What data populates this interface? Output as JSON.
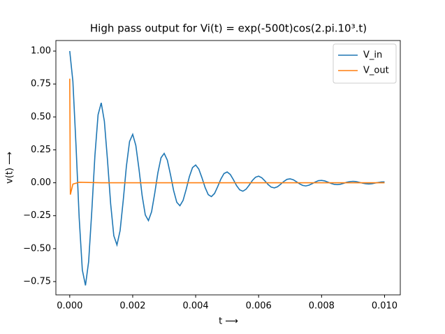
{
  "chart_data": {
    "type": "line",
    "title": "High pass output for Vi(t) = exp(-500t)cos(2.pi.10³.t)",
    "x_label": "t ⟶",
    "y_label": "v(t) ⟶",
    "xlim": [
      -0.00044,
      0.0105
    ],
    "ylim": [
      -0.851,
      1.08
    ],
    "xticks": [
      {
        "value": 0,
        "label": "0.000"
      },
      {
        "value": 0.002,
        "label": "0.002"
      },
      {
        "value": 0.004,
        "label": "0.004"
      },
      {
        "value": 0.006,
        "label": "0.006"
      },
      {
        "value": 0.008,
        "label": "0.008"
      },
      {
        "value": 0.01,
        "label": "0.010"
      }
    ],
    "yticks": [
      {
        "value": -0.75,
        "label": "−0.75"
      },
      {
        "value": -0.5,
        "label": "−0.50"
      },
      {
        "value": -0.25,
        "label": "−0.25"
      },
      {
        "value": 0,
        "label": "0.00"
      },
      {
        "value": 0.25,
        "label": "0.25"
      },
      {
        "value": 0.5,
        "label": "0.50"
      },
      {
        "value": 0.75,
        "label": "0.75"
      },
      {
        "value": 1,
        "label": "1.00"
      }
    ],
    "legend": "upper right",
    "series": [
      {
        "name": "V_in",
        "color": "#1f77b4",
        "x": [
          0,
          0.0001,
          0.0002,
          0.0003,
          0.0004,
          0.0005,
          0.0006,
          0.0007,
          0.0008,
          0.0009,
          0.001,
          0.0011,
          0.0012,
          0.0013,
          0.0014,
          0.0015,
          0.0016,
          0.0017,
          0.0018,
          0.0019,
          0.002,
          0.0021,
          0.0022,
          0.0023,
          0.0024,
          0.0025,
          0.0026,
          0.0027,
          0.0028,
          0.0029,
          0.003,
          0.0031,
          0.0032,
          0.0033,
          0.0034,
          0.0035,
          0.0036,
          0.0037,
          0.0038,
          0.0039,
          0.004,
          0.0041,
          0.0042,
          0.0043,
          0.0044,
          0.0045,
          0.0046,
          0.0047,
          0.0048,
          0.0049,
          0.005,
          0.0051,
          0.0052,
          0.0053,
          0.0054,
          0.0055,
          0.0056,
          0.0057,
          0.0058,
          0.0059,
          0.006,
          0.0061,
          0.0062,
          0.0063,
          0.0064,
          0.0065,
          0.0066,
          0.0067,
          0.0068,
          0.0069,
          0.007,
          0.0071,
          0.0072,
          0.0073,
          0.0074,
          0.0075,
          0.0076,
          0.0077,
          0.0078,
          0.0079,
          0.008,
          0.0081,
          0.0082,
          0.0083,
          0.0084,
          0.0085,
          0.0086,
          0.0087,
          0.0088,
          0.0089,
          0.009,
          0.0091,
          0.0092,
          0.0093,
          0.0094,
          0.0095,
          0.0096,
          0.0097,
          0.0098,
          0.0099,
          0.01
        ],
        "values": [
          1,
          0.77,
          0.28,
          -0.266,
          -0.662,
          -0.779,
          -0.599,
          -0.218,
          0.207,
          0.516,
          0.607,
          0.467,
          0.17,
          -0.161,
          -0.402,
          -0.472,
          -0.363,
          -0.132,
          0.126,
          0.313,
          0.368,
          0.283,
          0.103,
          -0.098,
          -0.244,
          -0.287,
          -0.22,
          -0.08,
          0.076,
          0.19,
          0.223,
          0.172,
          0.062,
          -0.059,
          -0.148,
          -0.174,
          -0.134,
          -0.049,
          0.046,
          0.115,
          0.135,
          0.104,
          0.038,
          -0.036,
          -0.09,
          -0.105,
          -0.081,
          -0.029,
          0.028,
          0.07,
          0.082,
          0.063,
          0.023,
          -0.022,
          -0.054,
          -0.064,
          -0.049,
          -0.018,
          0.017,
          0.042,
          0.05,
          0.038,
          0.014,
          -0.013,
          -0.033,
          -0.039,
          -0.03,
          -0.011,
          0.01,
          0.026,
          0.03,
          0.023,
          0.008,
          -0.008,
          -0.02,
          -0.024,
          -0.018,
          -0.007,
          0.006,
          0.016,
          0.018,
          0.014,
          0.005,
          -0.005,
          -0.012,
          -0.014,
          -0.011,
          -0.004,
          0.004,
          0.009,
          0.011,
          0.009,
          0.003,
          -0.003,
          -0.007,
          -0.009,
          -0.007,
          -0.002,
          0.002,
          0.006,
          0.007
        ]
      },
      {
        "name": "V_out",
        "color": "#ff7f0e",
        "x": [
          0,
          2e-05,
          0.0001,
          0.0003,
          0.001,
          0.01
        ],
        "values": [
          0.79,
          -0.09,
          -0.01,
          0.004,
          0,
          0
        ]
      }
    ]
  }
}
